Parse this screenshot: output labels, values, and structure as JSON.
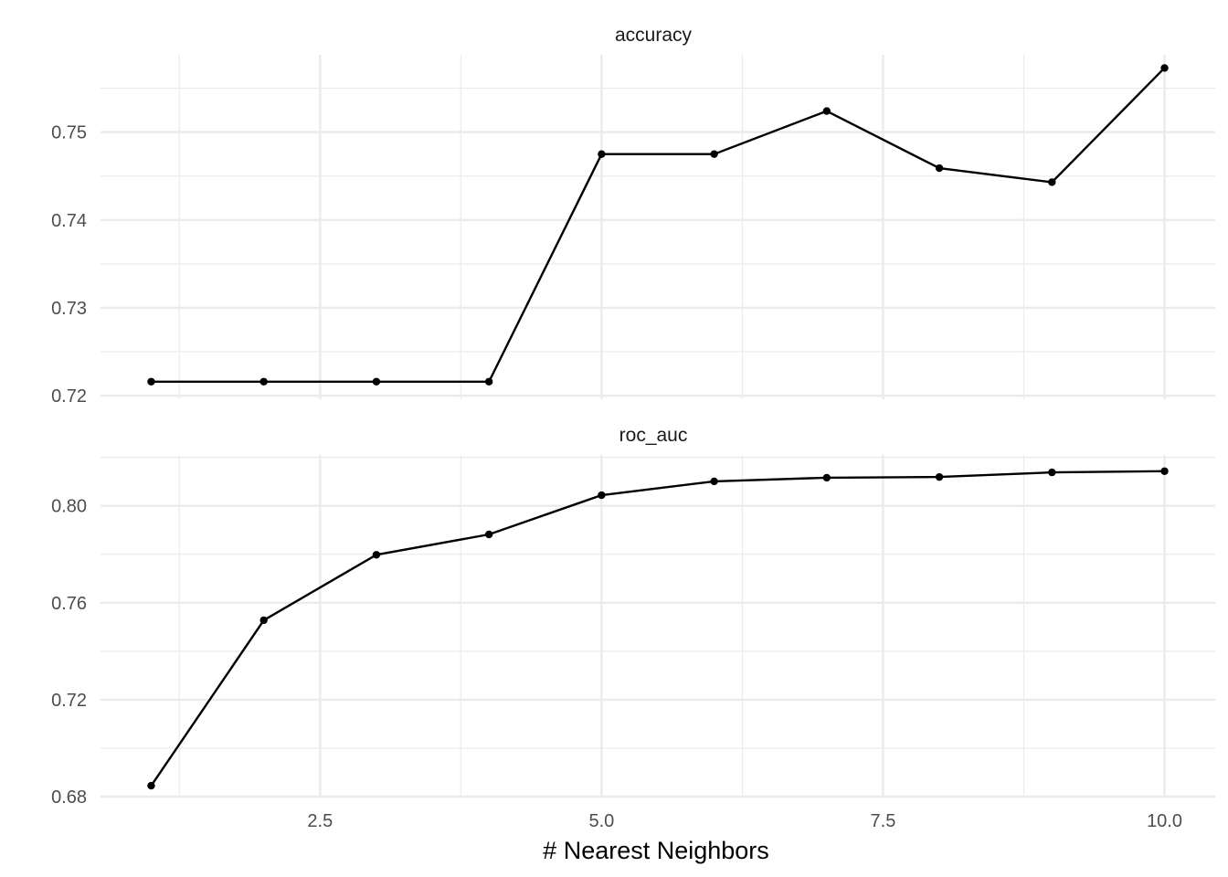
{
  "chart_data": {
    "type": "line",
    "xlabel": "# Nearest Neighbors",
    "x_ticks": [
      "2.5",
      "5.0",
      "7.5",
      "10.0"
    ],
    "xlim": [
      0.55,
      10.45
    ],
    "grid": true,
    "panels": [
      {
        "strip": "accuracy",
        "ylim": [
          0.7196,
          0.7588
        ],
        "y_ticks": [
          "0.72",
          "0.73",
          "0.74",
          "0.75"
        ],
        "series": [
          {
            "x": [
              1,
              2,
              3,
              4,
              5,
              6,
              7,
              8,
              9,
              10
            ],
            "values": [
              0.7216,
              0.7216,
              0.7216,
              0.7216,
              0.7475,
              0.7475,
              0.7524,
              0.7459,
              0.7443,
              0.7573
            ]
          }
        ]
      },
      {
        "strip": "roc_auc",
        "ylim": [
          0.68,
          0.821
        ],
        "y_ticks": [
          "0.68",
          "0.72",
          "0.76",
          "0.80"
        ],
        "series": [
          {
            "x": [
              1,
              2,
              3,
              4,
              5,
              6,
              7,
              8,
              9,
              10
            ],
            "values": [
              0.6845,
              0.7528,
              0.7798,
              0.7882,
              0.8044,
              0.8101,
              0.8116,
              0.8119,
              0.8138,
              0.8143
            ]
          }
        ]
      }
    ],
    "colors": {
      "line": "#000000",
      "grid": "#ebebeb",
      "text": "#4d4d4d"
    }
  }
}
